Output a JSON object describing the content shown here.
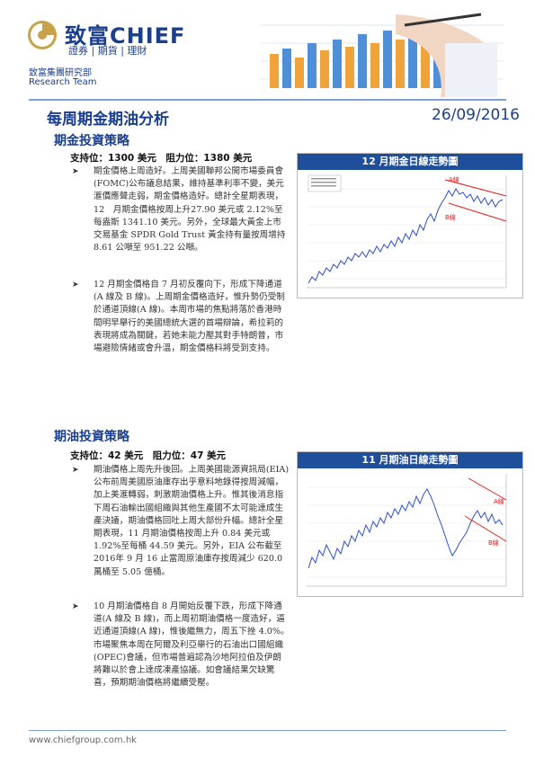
{
  "header": {
    "brand_cn": "致富",
    "brand_en": "CHIEF",
    "brand_sub": "證券 | 期貨 | 理財",
    "dept_cn": "致富集團研究部",
    "dept_en": "Research Team"
  },
  "title": "每周期金期油分析",
  "date": "26/09/2016",
  "gold": {
    "section_title": "期金投資策略",
    "support_resistance": "支持位：1300 美元　阻力位：1380 美元",
    "para1": "期金價格上周造好。上周美國聯邦公開市場委員會(FOMC)公布議息結果，維持基準利率不變，美元滙價應聲走弱，期金價格造好。總計全星期表現，12　月期金價格按周上升27.90 美元或 2.12%至每盎斯 1341.10 美元。另外，全球最大黃金上市交易基金 SPDR Gold Trust 黃金持有量按周增持 8.61 公噸至 951.22 公噸。",
    "para2": "12 月期金價格自 7 月初反覆向下，形成下降通道(A 線及 B 線)。上周期金價格造好，惟升勢仍受制於通道頂線(A 線)。本周市場的焦點將落於香港時間明早舉行的美國總統大選的首場辯論，希拉莉的表現將成為關鍵，若她未能力壓其對手特朗普，市場避險情緒或會升溫，期金價格料將受到支持。",
    "chart_title": "12 月期金日線走勢圖",
    "line_a": "A線",
    "line_b": "B線"
  },
  "oil": {
    "section_title": "期油投資策略",
    "support_resistance": "支持位：42 美元　阻力位：47 美元",
    "para1": "期油價格上周先升後回。上周美國能源資訊局(EIA)公布前周美國原油庫存出乎意料地錄得按周減幅，加上美滙轉弱，刺激期油價格上升。惟其後消息指下周石油輸出國組織與其他生產國不太可能達成生產決議，期油價格回吐上周大部份升幅。總計全星期表現，11 月期油價格按周上升 0.84 美元或 1.92%至每桶 44.59 美元。另外，EIA 公布截至 2016年 9 月 16 止當周原油庫存按周減少 620.0 萬桶至 5.05 億桶。",
    "para2": "10 月期油價格自 8 月開始反覆下跌，形成下降通道(A 線及 B 線)，而上周初期油價格一度造好，逼近通道頂線(A 線)，惟後繼無力，周五下挫 4.0%。市場聚焦本周在阿爾及利亞舉行的石油出口國組織(OPEC)會議，但市場普遍認為沙地阿拉伯及伊朗將難以於會上達成凍產協議。如會議結果欠缺驚喜，預期期油價格將繼續受壓。",
    "chart_title": "11 月期油日線走勢圖",
    "line_a": "A線",
    "line_b": "B線"
  },
  "footer": {
    "url": "www.chiefgroup.com.hk"
  },
  "colors": {
    "brand_blue": "#1a3f8f",
    "chart_header": "#1f4e9a",
    "price_line": "#2a4fd0",
    "channel": "#e02020"
  }
}
